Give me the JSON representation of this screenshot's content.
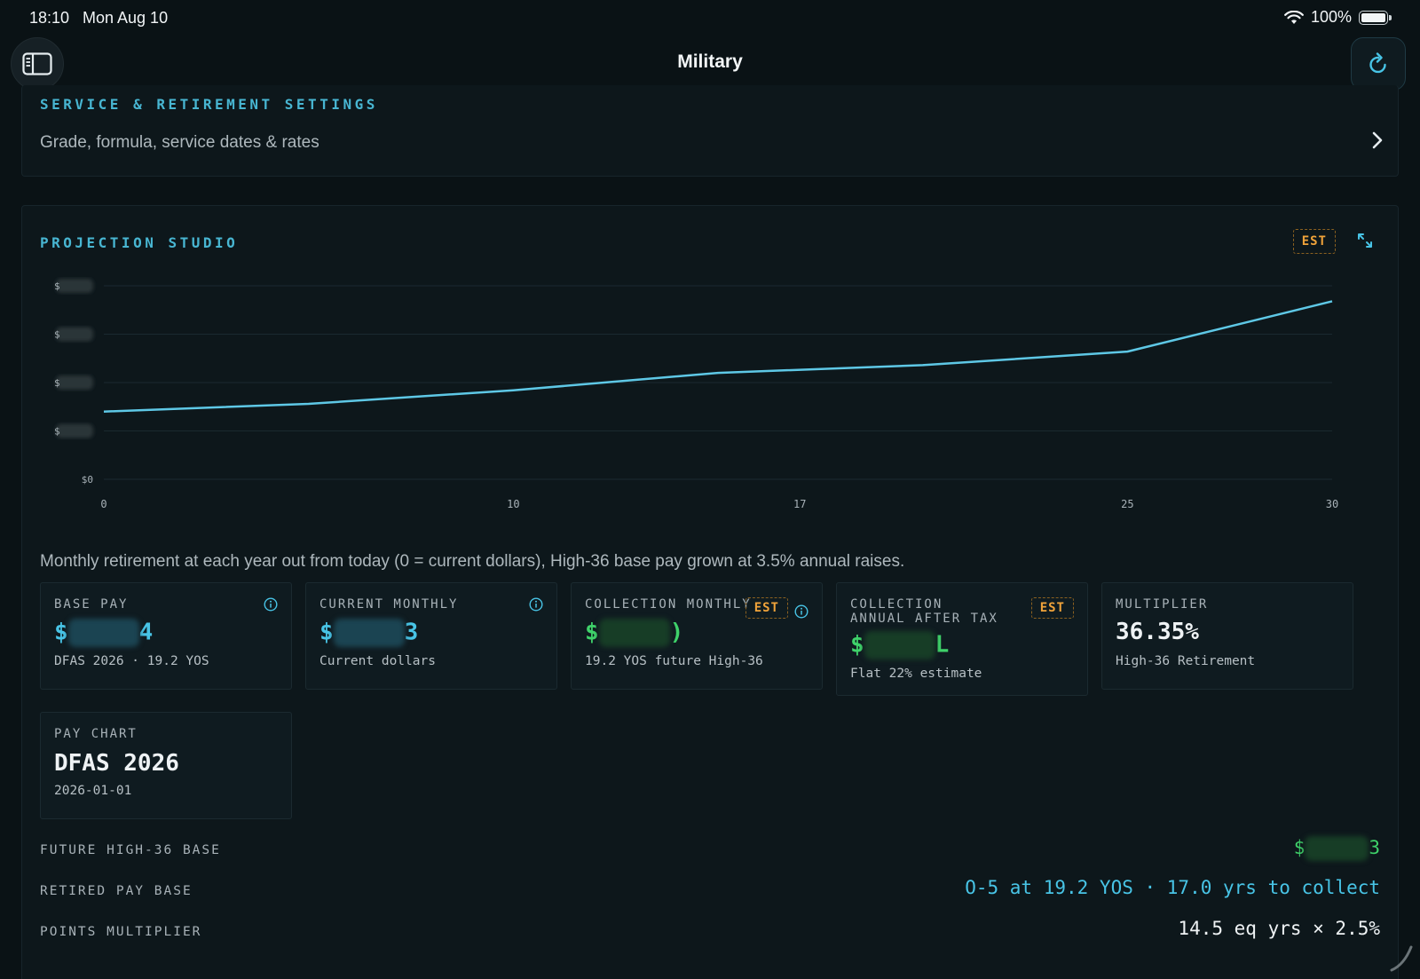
{
  "status_bar": {
    "time": "18:10",
    "date": "Mon Aug 10",
    "battery": "100%"
  },
  "nav": {
    "title": "Military"
  },
  "settings": {
    "title": "SERVICE & RETIREMENT SETTINGS",
    "subtitle": "Grade, formula, service dates & rates"
  },
  "studio": {
    "title": "PROJECTION STUDIO",
    "badge": "EST",
    "caption": "Monthly retirement at each year out from today (0 = current dollars), High-36 base pay grown at 3.5% annual raises."
  },
  "chart_data": {
    "type": "line",
    "x_ticks": [
      "0",
      "10",
      "17",
      "25",
      "30"
    ],
    "y_ticks": [
      "$",
      "$",
      "$",
      "$",
      "$0"
    ],
    "x": [
      0,
      5,
      10,
      15,
      20,
      25,
      30
    ],
    "series": [
      {
        "values": [
          0.35,
          0.39,
          0.46,
          0.55,
          0.59,
          0.66,
          0.92
        ]
      }
    ],
    "xlim": [
      0,
      30
    ],
    "ylim": [
      0,
      1
    ],
    "grid": true,
    "line_color": "#5ec8e6"
  },
  "tiles": [
    {
      "label": "BASE PAY",
      "value_prefix": "$",
      "value_suffix": "4",
      "sub": "DFAS 2026 · 19.2 YOS",
      "info": true,
      "est": false,
      "color": "cyan"
    },
    {
      "label": "CURRENT MONTHLY",
      "value_prefix": "$",
      "value_suffix": "3",
      "sub": "Current dollars",
      "info": true,
      "est": false,
      "color": "cyan"
    },
    {
      "label": "COLLECTION MONTHLY",
      "value_prefix": "$",
      "value_suffix": ")",
      "sub": "19.2 YOS future High-36",
      "info": true,
      "est": true,
      "color": "green"
    },
    {
      "label": "COLLECTION ANNUAL AFTER TAX",
      "value_prefix": "$",
      "value_suffix": "L",
      "sub": "Flat 22% estimate",
      "info": false,
      "est": true,
      "color": "green"
    },
    {
      "label": "MULTIPLIER",
      "value": "36.35%",
      "sub": "High-36 Retirement",
      "info": false,
      "est": false,
      "color": "white"
    }
  ],
  "pay_chart": {
    "label": "PAY CHART",
    "value": "DFAS 2026",
    "sub": "2026-01-01"
  },
  "rows": [
    {
      "label": "FUTURE HIGH-36 BASE",
      "value_prefix": "$",
      "value_suffix": "3"
    },
    {
      "label": "RETIRED PAY BASE",
      "value": "O-5 at 19.2 YOS · 17.0 yrs to collect"
    },
    {
      "label": "POINTS MULTIPLIER",
      "value": "14.5 eq yrs × 2.5%"
    }
  ]
}
